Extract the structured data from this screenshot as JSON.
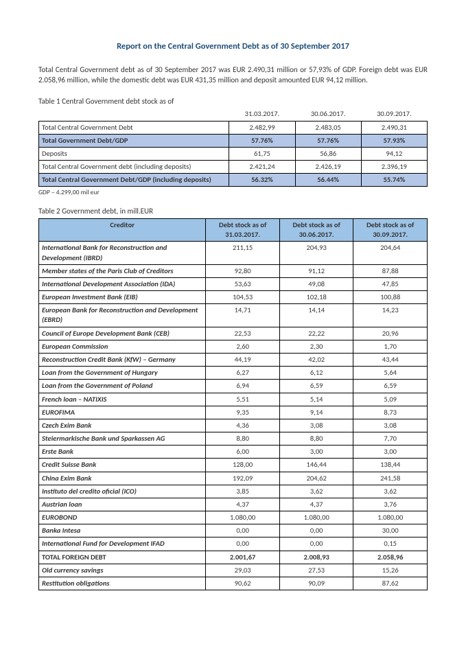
{
  "title": "Report on the Central Government Debt as of 30 September 2017",
  "intro": "Total Central Government debt as of 30 September 2017 was EUR 2.490,31 million or 57,93% of GDP. Foreign debt was EUR 2.058,96 million, while the domestic debt was EUR 431,35 million and deposit amounted EUR 94,12 million.",
  "table1": {
    "label": "Table 1 Central Government debt stock as of",
    "dates": [
      "31.03.2017.",
      "30.06.2017.",
      "30.09.2017."
    ],
    "rows": [
      {
        "l": "Total Central Government Debt",
        "v": [
          "2.482,99",
          "2.483,05",
          "2.490,31"
        ],
        "hl": false,
        "b": false
      },
      {
        "l": "Total Government Debt/GDP",
        "v": [
          "57.76%",
          "57.76%",
          "57.93%"
        ],
        "hl": true,
        "b": true
      },
      {
        "l": "Deposits",
        "v": [
          "61,75",
          "56,86",
          "94,12"
        ],
        "hl": false,
        "b": false
      },
      {
        "l": "Total Central Government debt (including deposits)",
        "v": [
          "2.421,24",
          "2.426,19",
          "2.396,19"
        ],
        "hl": false,
        "b": false,
        "just": true
      },
      {
        "l": "Total Central Government Debt/GDP (including deposits)",
        "v": [
          "56.32%",
          "56.44%",
          "55.74%"
        ],
        "hl": true,
        "b": true
      }
    ],
    "note": "GDP – 4.299,00 mil eur"
  },
  "table2": {
    "label": "Table 2 Government debt, in mill.EUR",
    "headers": [
      "Creditor",
      "Debt stock as of 31.03.2017.",
      "Debt stock as of 30.06.2017.",
      "Debt stock as of 30.09.2017."
    ],
    "rows": [
      {
        "l": "International Bank for Reconstruction and Development (IBRD)",
        "v": [
          "211,15",
          "204,93",
          "204,64"
        ],
        "s": "ital"
      },
      {
        "l": "Member states of the Paris Club of Creditors",
        "v": [
          "92,80",
          "91,12",
          "87,88"
        ],
        "s": "ital"
      },
      {
        "l": "International Development Association (IDA)",
        "v": [
          "53,63",
          "49,08",
          "47,85"
        ],
        "s": "ital"
      },
      {
        "l": "European Investment Bank (EIB)",
        "v": [
          "104,53",
          "102,18",
          "100,88"
        ],
        "s": "ital"
      },
      {
        "l": "European Bank for Reconstruction and Development (EBRD)",
        "v": [
          "14,71",
          "14,14",
          "14,23"
        ],
        "s": "ital"
      },
      {
        "l": "Council of Europe Development Bank (CEB)",
        "v": [
          "22,53",
          "22,22",
          "20,96"
        ],
        "s": "ital"
      },
      {
        "l": "European Commission",
        "v": [
          "2,60",
          "2,30",
          "1,70"
        ],
        "s": "ital"
      },
      {
        "l": "Reconstruction Credit Bank (KfW) – Germany",
        "v": [
          "44,19",
          "42,02",
          "43,44"
        ],
        "s": "ital"
      },
      {
        "l": "Loan from the Government of Hungary",
        "v": [
          "6,27",
          "6,12",
          "5,64"
        ],
        "s": "ital"
      },
      {
        "l": "Loan from the Government of Poland",
        "v": [
          "6,94",
          "6,59",
          "6,59"
        ],
        "s": "ital"
      },
      {
        "l": "French loan – NATIXIS",
        "v": [
          "5,51",
          "5,14",
          "5,09"
        ],
        "s": "ital"
      },
      {
        "l": "EUROFIMA",
        "v": [
          "9,35",
          "9,14",
          "8,73"
        ],
        "s": "ital"
      },
      {
        "l": "Czech Exim Bank",
        "v": [
          "4,36",
          "3,08",
          "3,08"
        ],
        "s": "ital"
      },
      {
        "l": "Steiermarkische Bank und Sparkassen AG",
        "v": [
          "8,80",
          "8,80",
          "7,70"
        ],
        "s": "ital"
      },
      {
        "l": "Erste Bank",
        "v": [
          "6,00",
          "3,00",
          "3,00"
        ],
        "s": "ital"
      },
      {
        "l": "Credit Suisse Bank",
        "v": [
          "128,00",
          "146,44",
          "138,44"
        ],
        "s": "ital"
      },
      {
        "l": "China Exim Bank",
        "v": [
          "192,09",
          "204,62",
          "241,58"
        ],
        "s": "ital"
      },
      {
        "l": "Instituto del credito oficial (ICO)",
        "v": [
          "3,85",
          "3,62",
          "3,62"
        ],
        "s": "ital"
      },
      {
        "l": "Austrian loan",
        "v": [
          "4,37",
          "4,37",
          "3,76"
        ],
        "s": "ital"
      },
      {
        "l": "EUROBOND",
        "v": [
          "1.080,00",
          "1.080,00",
          "1.080,00"
        ],
        "s": "ital"
      },
      {
        "l": "Banka Intesa",
        "v": [
          "0,00",
          "0,00",
          "30,00"
        ],
        "s": "ital"
      },
      {
        "l": "International Fund for Development IFAD",
        "v": [
          "0,00",
          "0,00",
          "0,15"
        ],
        "s": "ital"
      },
      {
        "l": "TOTAL FOREIGN DEBT",
        "v": [
          "2.001,67",
          "2.008,93",
          "2.058,96"
        ],
        "s": "bold"
      },
      {
        "l": "Old currency savings",
        "v": [
          "29,03",
          "27,53",
          "15,26"
        ],
        "s": "ital"
      },
      {
        "l": "Restitution obligations",
        "v": [
          "90,62",
          "90,09",
          "87,62"
        ],
        "s": "ital"
      }
    ]
  }
}
